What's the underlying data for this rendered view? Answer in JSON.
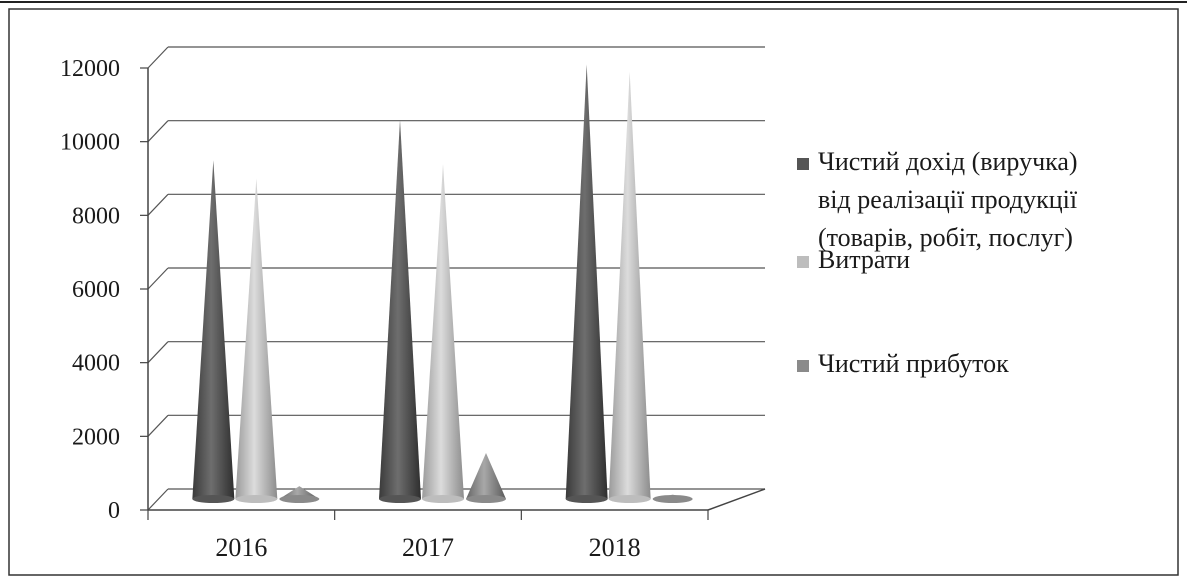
{
  "chart_data": {
    "type": "bar",
    "subtype": "3d-cone",
    "categories": [
      "2016",
      "2017",
      "2018"
    ],
    "series": [
      {
        "name": "Чистий дохід (виручка) від реалізації продукції (товарів, робіт, послуг)",
        "values": [
          9200,
          10300,
          11800
        ],
        "color": "#555555"
      },
      {
        "name": "Витрати",
        "values": [
          8700,
          9100,
          11600
        ],
        "color": "#bdbdbd"
      },
      {
        "name": "Чистий прибуток",
        "values": [
          350,
          1250,
          120
        ],
        "color": "#8a8a8a"
      }
    ],
    "legend_lines": [
      [
        "Чистий дохід (виручка)",
        "від реалізації продукції",
        "(товарів, робіт, послуг)"
      ],
      [
        "Витрати"
      ],
      [
        "Чистий прибуток"
      ]
    ],
    "y_ticks": [
      "0",
      "2000",
      "4000",
      "6000",
      "8000",
      "10000",
      "12000"
    ],
    "ylim": [
      0,
      12000
    ],
    "grid": true,
    "legend_position": "right",
    "title": "",
    "xlabel": "",
    "ylabel": ""
  }
}
